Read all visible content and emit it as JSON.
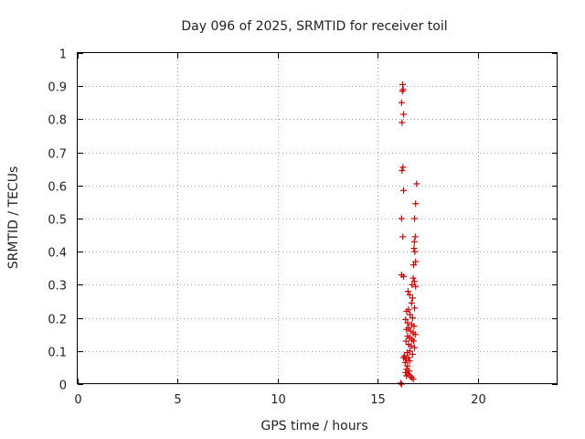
{
  "chart_data": {
    "type": "scatter",
    "title": "Day 096 of 2025, SRMTID for receiver toil",
    "xlabel": "GPS time / hours",
    "ylabel": "SRMTID / TECUs",
    "xlim": [
      0,
      24
    ],
    "ylim": [
      0,
      1
    ],
    "xticks": [
      "0",
      "5",
      "10",
      "15",
      "20"
    ],
    "yticks": [
      "0",
      "0.1",
      "0.2",
      "0.3",
      "0.4",
      "0.5",
      "0.6",
      "0.7",
      "0.8",
      "0.9",
      "1"
    ],
    "grid": true,
    "marker": "+",
    "color": "#d40000",
    "series": [
      {
        "name": "SRMTID",
        "points": [
          [
            16.25,
            0.905
          ],
          [
            16.28,
            0.89
          ],
          [
            16.24,
            0.885
          ],
          [
            16.2,
            0.85
          ],
          [
            16.3,
            0.815
          ],
          [
            16.22,
            0.79
          ],
          [
            16.27,
            0.655
          ],
          [
            16.22,
            0.645
          ],
          [
            16.3,
            0.585
          ],
          [
            16.2,
            0.5
          ],
          [
            16.26,
            0.445
          ],
          [
            16.2,
            0.33
          ],
          [
            16.3,
            0.325
          ],
          [
            16.95,
            0.605
          ],
          [
            16.9,
            0.545
          ],
          [
            16.85,
            0.5
          ],
          [
            16.88,
            0.445
          ],
          [
            16.84,
            0.43
          ],
          [
            16.82,
            0.41
          ],
          [
            16.86,
            0.4
          ],
          [
            16.9,
            0.37
          ],
          [
            16.8,
            0.36
          ],
          [
            16.78,
            0.32
          ],
          [
            16.84,
            0.31
          ],
          [
            16.72,
            0.3
          ],
          [
            16.9,
            0.295
          ],
          [
            16.52,
            0.28
          ],
          [
            16.6,
            0.27
          ],
          [
            16.75,
            0.26
          ],
          [
            16.7,
            0.245
          ],
          [
            16.45,
            0.22
          ],
          [
            16.55,
            0.225
          ],
          [
            16.85,
            0.23
          ],
          [
            16.62,
            0.21
          ],
          [
            16.75,
            0.2
          ],
          [
            16.4,
            0.195
          ],
          [
            16.5,
            0.185
          ],
          [
            16.7,
            0.18
          ],
          [
            16.82,
            0.175
          ],
          [
            16.55,
            0.17
          ],
          [
            16.45,
            0.165
          ],
          [
            16.65,
            0.16
          ],
          [
            16.78,
            0.155
          ],
          [
            16.88,
            0.15
          ],
          [
            16.5,
            0.145
          ],
          [
            16.6,
            0.14
          ],
          [
            16.72,
            0.135
          ],
          [
            16.8,
            0.13
          ],
          [
            16.42,
            0.13
          ],
          [
            16.55,
            0.12
          ],
          [
            16.68,
            0.115
          ],
          [
            16.85,
            0.11
          ],
          [
            16.6,
            0.1
          ],
          [
            16.48,
            0.095
          ],
          [
            16.75,
            0.09
          ],
          [
            16.35,
            0.085
          ],
          [
            16.3,
            0.08
          ],
          [
            16.42,
            0.075
          ],
          [
            16.55,
            0.08
          ],
          [
            16.6,
            0.07
          ],
          [
            16.38,
            0.065
          ],
          [
            16.5,
            0.055
          ],
          [
            16.45,
            0.045
          ],
          [
            16.58,
            0.04
          ],
          [
            16.4,
            0.035
          ],
          [
            16.52,
            0.03
          ],
          [
            16.44,
            0.025
          ],
          [
            16.62,
            0.025
          ],
          [
            16.7,
            0.02
          ],
          [
            16.78,
            0.015
          ],
          [
            16.15,
            0.003
          ],
          [
            16.2,
            0.0
          ]
        ]
      }
    ]
  }
}
